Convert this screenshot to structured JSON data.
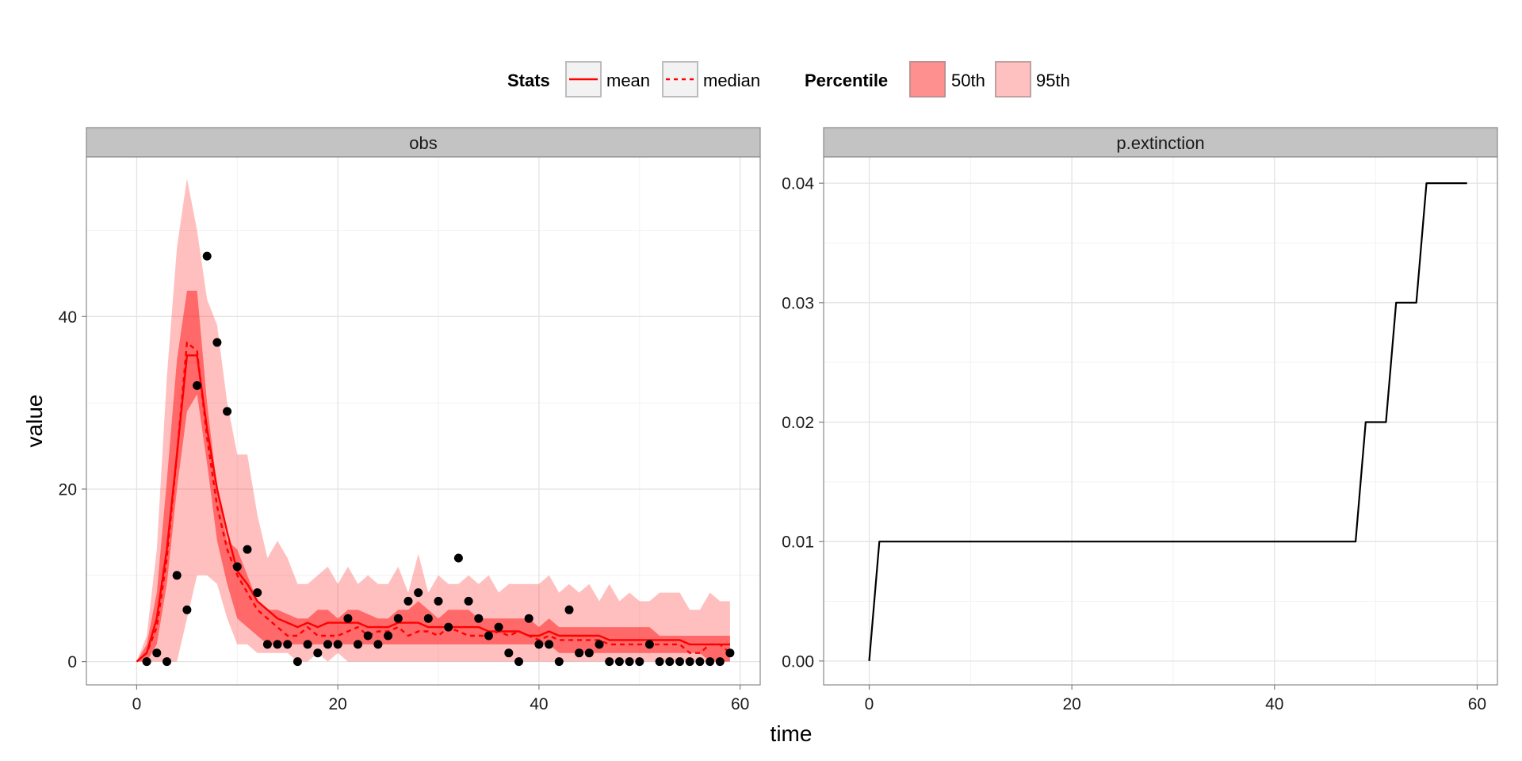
{
  "legend": {
    "stats_title": "Stats",
    "stats_items": [
      {
        "label": "mean",
        "linetype": "solid",
        "color": "#ff0000"
      },
      {
        "label": "median",
        "linetype": "dashed",
        "color": "#ff0000"
      }
    ],
    "percentile_title": "Percentile",
    "percentile_items": [
      {
        "label": "50th",
        "color": "#ff0000",
        "alpha": 0.45
      },
      {
        "label": "95th",
        "color": "#ff0000",
        "alpha": 0.25
      }
    ]
  },
  "axes": {
    "xlabel": "time",
    "ylabel": "value"
  },
  "chart_data": [
    {
      "type": "area",
      "panel": "obs",
      "xlim": [
        -5,
        62
      ],
      "ylim": [
        -2.7,
        58.5
      ],
      "x_ticks": [
        0,
        20,
        40,
        60
      ],
      "y_ticks": [
        0,
        20,
        40
      ],
      "y_tick_labels": [
        "0",
        "20",
        "40"
      ],
      "grid": true,
      "x": [
        0,
        1,
        2,
        3,
        4,
        5,
        6,
        7,
        8,
        9,
        10,
        11,
        12,
        13,
        14,
        15,
        16,
        17,
        18,
        19,
        20,
        21,
        22,
        23,
        24,
        25,
        26,
        27,
        28,
        29,
        30,
        31,
        32,
        33,
        34,
        35,
        36,
        37,
        38,
        39,
        40,
        41,
        42,
        43,
        44,
        45,
        46,
        47,
        48,
        49,
        50,
        51,
        52,
        53,
        54,
        55,
        56,
        57,
        58,
        59
      ],
      "bands": {
        "p95_upper": [
          0,
          3,
          13,
          33,
          48,
          56,
          50,
          42,
          39,
          30,
          24,
          24,
          17,
          12,
          14,
          12,
          9,
          9,
          10,
          11,
          9,
          11,
          9,
          10,
          9,
          9,
          11,
          8,
          12.5,
          8,
          10,
          9,
          9,
          10,
          9,
          10,
          8,
          9,
          9,
          9,
          9,
          10,
          8,
          9,
          8,
          9,
          7,
          9,
          7,
          8,
          7,
          7,
          8,
          8,
          8,
          6,
          6,
          8,
          7,
          7
        ],
        "p95_lower": [
          0,
          0,
          0,
          0,
          0,
          5,
          10,
          10,
          9,
          5,
          2,
          2,
          1,
          1,
          1,
          1,
          0,
          0,
          1,
          0,
          1,
          0,
          0,
          0,
          0,
          0,
          0,
          0,
          0,
          0,
          0,
          0,
          0,
          0,
          0,
          0,
          0,
          0,
          0,
          0,
          0,
          0,
          0,
          0,
          0,
          0,
          0,
          0,
          0,
          0,
          0,
          0,
          0,
          0,
          0,
          0,
          0,
          0,
          0,
          0
        ],
        "p50_upper": [
          0,
          2,
          8,
          21,
          35,
          43,
          43,
          30,
          20,
          14,
          13,
          10,
          7,
          6,
          6,
          5.5,
          5,
          5,
          6,
          6,
          5,
          6,
          6,
          5.5,
          5,
          5,
          6,
          6,
          7,
          6,
          5,
          6,
          6,
          6,
          5,
          5,
          5,
          5,
          5,
          5,
          4,
          5,
          4,
          4,
          4,
          4,
          4,
          4,
          4,
          4,
          4,
          4,
          3,
          3,
          3,
          3,
          3,
          3,
          3,
          3
        ],
        "p50_lower": [
          0,
          0,
          2,
          9,
          20,
          29,
          31,
          23,
          14,
          9,
          5,
          4,
          3,
          2,
          2,
          2,
          2,
          2,
          2,
          2,
          2,
          2,
          2,
          2,
          2,
          2,
          2,
          2,
          2,
          2,
          2,
          2,
          2,
          2,
          2,
          2,
          2,
          2,
          2,
          2,
          2,
          2,
          1,
          1,
          1,
          1,
          1,
          1,
          1,
          1,
          1,
          1,
          1,
          1,
          1,
          1,
          1,
          0,
          0,
          0
        ]
      },
      "series": [
        {
          "name": "mean",
          "linetype": "solid",
          "values": [
            0,
            1,
            5,
            13,
            24,
            35.5,
            35.5,
            27,
            20,
            15,
            10.5,
            9,
            7,
            6,
            5,
            4.5,
            4,
            4.5,
            4,
            4.5,
            4.5,
            4.5,
            4.5,
            4,
            4,
            4,
            4.5,
            4.5,
            4.5,
            4,
            4,
            4,
            4,
            4,
            4,
            3.5,
            3.5,
            3.5,
            3.5,
            3,
            3,
            3.5,
            3,
            3,
            3,
            3,
            3,
            2.5,
            2.5,
            2.5,
            2.5,
            2.5,
            2.5,
            2.5,
            2.5,
            2,
            2,
            2,
            2,
            2
          ]
        },
        {
          "name": "median",
          "linetype": "dashed",
          "values": [
            0,
            1,
            4,
            12,
            24,
            37,
            36,
            26,
            18,
            13,
            10,
            8,
            6,
            5,
            4,
            3,
            3,
            4,
            3,
            3,
            3,
            3.5,
            4,
            3,
            3.5,
            3.5,
            4,
            3,
            3.5,
            3.5,
            3,
            4,
            3.5,
            3,
            3,
            3,
            3.5,
            3,
            3.5,
            3,
            2.5,
            3,
            2.5,
            2.5,
            2.5,
            2.5,
            2.5,
            2,
            2,
            2,
            2,
            2,
            2,
            2,
            2,
            1,
            1,
            2,
            2,
            1
          ]
        }
      ],
      "points": {
        "x": [
          1,
          2,
          3,
          4,
          5,
          6,
          7,
          8,
          9,
          10,
          11,
          12,
          13,
          14,
          15,
          16,
          17,
          18,
          19,
          20,
          21,
          22,
          23,
          24,
          25,
          26,
          27,
          28,
          29,
          30,
          31,
          32,
          33,
          34,
          35,
          36,
          37,
          38,
          39,
          40,
          41,
          42,
          43,
          44,
          45,
          46,
          47,
          48,
          49,
          50,
          51,
          52,
          53,
          54,
          55,
          56,
          57,
          58,
          59
        ],
        "y": [
          0,
          1,
          0,
          10,
          6,
          32,
          47,
          37,
          29,
          11,
          13,
          8,
          2,
          2,
          2,
          0,
          2,
          1,
          2,
          2,
          5,
          2,
          3,
          2,
          3,
          5,
          7,
          8,
          5,
          7,
          4,
          12,
          7,
          5,
          3,
          4,
          1,
          0,
          5,
          2,
          2,
          0,
          6,
          1,
          1,
          2,
          0,
          0,
          0,
          0,
          2,
          0,
          0,
          0,
          0,
          0,
          0,
          0,
          1
        ]
      }
    },
    {
      "type": "line",
      "panel": "p.extinction",
      "xlim": [
        -4.5,
        62
      ],
      "ylim": [
        -0.002,
        0.0422
      ],
      "x_ticks": [
        0,
        20,
        40,
        60
      ],
      "y_ticks": [
        0,
        0.01,
        0.02,
        0.03,
        0.04
      ],
      "y_tick_labels": [
        "0.00",
        "0.01",
        "0.02",
        "0.03",
        "0.04"
      ],
      "grid": true,
      "x": [
        0,
        1,
        2,
        3,
        4,
        5,
        6,
        7,
        8,
        9,
        10,
        11,
        12,
        13,
        14,
        15,
        16,
        17,
        18,
        19,
        20,
        21,
        22,
        23,
        24,
        25,
        26,
        27,
        28,
        29,
        30,
        31,
        32,
        33,
        34,
        35,
        36,
        37,
        38,
        39,
        40,
        41,
        42,
        43,
        44,
        45,
        46,
        47,
        48,
        49,
        50,
        51,
        52,
        53,
        54,
        55,
        56,
        57,
        58,
        59
      ],
      "series": [
        {
          "color": "#000000",
          "values": [
            0,
            0.01,
            0.01,
            0.01,
            0.01,
            0.01,
            0.01,
            0.01,
            0.01,
            0.01,
            0.01,
            0.01,
            0.01,
            0.01,
            0.01,
            0.01,
            0.01,
            0.01,
            0.01,
            0.01,
            0.01,
            0.01,
            0.01,
            0.01,
            0.01,
            0.01,
            0.01,
            0.01,
            0.01,
            0.01,
            0.01,
            0.01,
            0.01,
            0.01,
            0.01,
            0.01,
            0.01,
            0.01,
            0.01,
            0.01,
            0.01,
            0.01,
            0.01,
            0.01,
            0.01,
            0.01,
            0.01,
            0.01,
            0.01,
            0.02,
            0.02,
            0.02,
            0.03,
            0.03,
            0.03,
            0.04,
            0.04,
            0.04,
            0.04,
            0.04
          ]
        }
      ]
    }
  ]
}
